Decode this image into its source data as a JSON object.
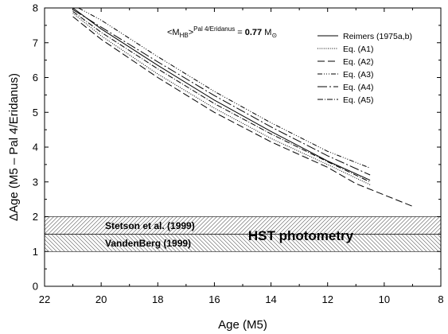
{
  "chart_data": {
    "type": "line",
    "xlabel": "Age (M5)",
    "ylabel": "ΔAge (M5 – Pal 4/Eridanus)",
    "xlim": [
      22,
      8
    ],
    "ylim": [
      0,
      8
    ],
    "x_reversed": true,
    "xticks": [
      22,
      20,
      18,
      16,
      14,
      12,
      10,
      8
    ],
    "yticks": [
      0,
      1,
      2,
      3,
      4,
      5,
      6,
      7,
      8
    ],
    "grid": false,
    "legend_position": "top-right",
    "annotation": {
      "prefix": "<M",
      "sub": "HB",
      "mid": ">",
      "sup": "Pal 4/Eridanus",
      "eq": " = ",
      "value": "0.77",
      "unit": "M",
      "unit_sub": "⊙"
    },
    "bands": [
      {
        "label": "Stetson et al. (1999)",
        "y0": 1.5,
        "y1": 2.0,
        "hatch": "forward"
      },
      {
        "label": "VandenBerg (1999)",
        "y0": 1.0,
        "y1": 1.5,
        "hatch": "back"
      }
    ],
    "band_label": "HST photometry",
    "series": [
      {
        "name": "Reimers (1975a,b)",
        "dash": "",
        "points": [
          [
            21.0,
            8.0
          ],
          [
            20.0,
            7.4
          ],
          [
            18.0,
            6.35
          ],
          [
            16.0,
            5.35
          ],
          [
            14.0,
            4.45
          ],
          [
            12.0,
            3.6
          ],
          [
            10.5,
            3.05
          ]
        ]
      },
      {
        "name": "Eq. (A1)",
        "dash": "1,1.6",
        "points": [
          [
            21.0,
            7.85
          ],
          [
            20.0,
            7.2
          ],
          [
            18.0,
            6.1
          ],
          [
            16.0,
            5.12
          ],
          [
            14.0,
            4.25
          ],
          [
            12.0,
            3.5
          ],
          [
            10.5,
            2.92
          ]
        ]
      },
      {
        "name": "Eq. (A2)",
        "dash": "9,4",
        "points": [
          [
            21.0,
            7.75
          ],
          [
            20.0,
            7.1
          ],
          [
            18.0,
            6.0
          ],
          [
            16.0,
            5.0
          ],
          [
            14.0,
            4.15
          ],
          [
            12.0,
            3.42
          ],
          [
            11.0,
            2.95
          ],
          [
            9.0,
            2.3
          ]
        ]
      },
      {
        "name": "Eq. (A3)",
        "dash": "6,2,1,2,1,2,1,2",
        "points": [
          [
            20.8,
            8.0
          ],
          [
            20.0,
            7.65
          ],
          [
            18.0,
            6.6
          ],
          [
            16.0,
            5.6
          ],
          [
            14.0,
            4.7
          ],
          [
            12.0,
            3.88
          ],
          [
            10.5,
            3.4
          ]
        ]
      },
      {
        "name": "Eq. (A4)",
        "dash": "12,3,2,3",
        "points": [
          [
            21.0,
            7.95
          ],
          [
            20.0,
            7.45
          ],
          [
            18.0,
            6.45
          ],
          [
            16.0,
            5.48
          ],
          [
            14.0,
            4.58
          ],
          [
            12.0,
            3.75
          ],
          [
            10.5,
            3.2
          ]
        ]
      },
      {
        "name": "Eq. (A5)",
        "dash": "7,2,1,2",
        "points": [
          [
            21.0,
            7.9
          ],
          [
            20.0,
            7.3
          ],
          [
            18.0,
            6.25
          ],
          [
            16.0,
            5.25
          ],
          [
            14.0,
            4.38
          ],
          [
            12.0,
            3.58
          ],
          [
            10.5,
            3.0
          ]
        ]
      }
    ]
  }
}
